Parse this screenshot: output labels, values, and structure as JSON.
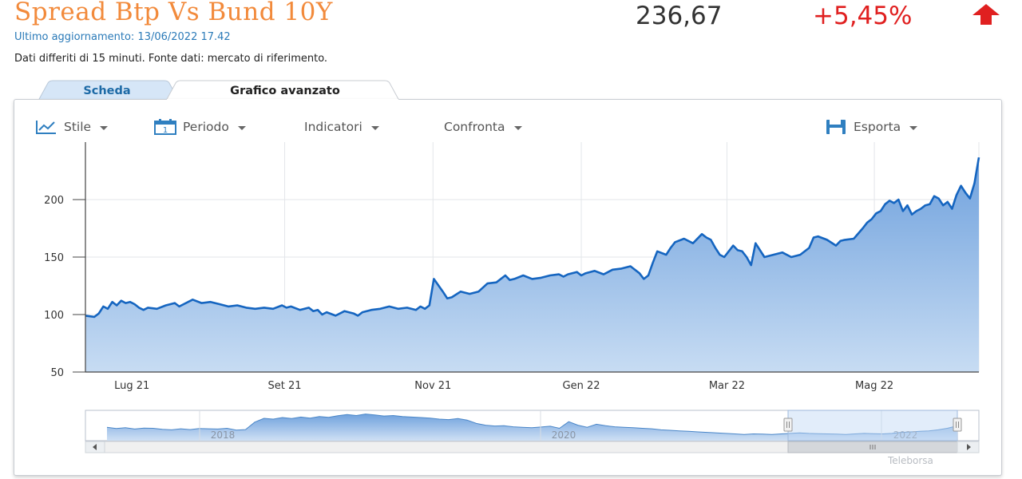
{
  "header": {
    "title": "Spread Btp Vs Bund 10Y",
    "value": "236,67",
    "change": "+5,45%",
    "updated_label": "Ultimo aggiornamento:",
    "updated_value": "13/06/2022 17.42",
    "delay_note": "Dati differiti di 15 minuti.  Fonte dati: mercato di riferimento.",
    "up_color": "#e02020",
    "title_color": "#f28a3b"
  },
  "tabs": [
    {
      "label": "Scheda",
      "active": false
    },
    {
      "label": "Grafico avanzato",
      "active": true
    }
  ],
  "toolbar": {
    "style_label": "Stile",
    "period_label": "Periodo",
    "indicators_label": "Indicatori",
    "compare_label": "Confronta",
    "export_label": "Esporta",
    "period_icon_day": "1"
  },
  "brand": "Teleborsa",
  "chart_data": {
    "type": "area",
    "color": "#1565c0",
    "fill_color": "#7aa9e0",
    "ylim": [
      50,
      250
    ],
    "yticks": [
      50,
      100,
      150,
      200
    ],
    "xlim": [
      0,
      1
    ],
    "xticks": [
      {
        "pos": 0.052,
        "label": "Lug 21"
      },
      {
        "pos": 0.223,
        "label": "Set 21"
      },
      {
        "pos": 0.389,
        "label": "Nov 21"
      },
      {
        "pos": 0.555,
        "label": "Gen 22"
      },
      {
        "pos": 0.718,
        "label": "Mar 22"
      },
      {
        "pos": 0.883,
        "label": "Mag 22"
      }
    ],
    "vlines": [
      0.223,
      0.389,
      0.555,
      0.718,
      0.883
    ],
    "grid": true,
    "series": [
      {
        "x": [
          0,
          0.01,
          0.015,
          0.02,
          0.025,
          0.03,
          0.035,
          0.04,
          0.045,
          0.05,
          0.055,
          0.06,
          0.065,
          0.07,
          0.08,
          0.09,
          0.1,
          0.105,
          0.11,
          0.12,
          0.13,
          0.14,
          0.15,
          0.16,
          0.17,
          0.18,
          0.19,
          0.2,
          0.21,
          0.22,
          0.225,
          0.23,
          0.24,
          0.25,
          0.255,
          0.26,
          0.265,
          0.27,
          0.28,
          0.29,
          0.3,
          0.305,
          0.31,
          0.32,
          0.33,
          0.34,
          0.35,
          0.36,
          0.37,
          0.375,
          0.38,
          0.385,
          0.39,
          0.4,
          0.405,
          0.41,
          0.42,
          0.43,
          0.44,
          0.45,
          0.46,
          0.47,
          0.475,
          0.48,
          0.49,
          0.5,
          0.51,
          0.52,
          0.53,
          0.535,
          0.54,
          0.55,
          0.555,
          0.56,
          0.57,
          0.58,
          0.59,
          0.6,
          0.61,
          0.62,
          0.625,
          0.63,
          0.635,
          0.64,
          0.65,
          0.655,
          0.66,
          0.67,
          0.68,
          0.69,
          0.695,
          0.7,
          0.705,
          0.71,
          0.715,
          0.72,
          0.725,
          0.73,
          0.735,
          0.74,
          0.745,
          0.75,
          0.76,
          0.77,
          0.78,
          0.79,
          0.8,
          0.81,
          0.815,
          0.82,
          0.83,
          0.84,
          0.845,
          0.85,
          0.86,
          0.87,
          0.875,
          0.88,
          0.885,
          0.89,
          0.895,
          0.9,
          0.905,
          0.91,
          0.915,
          0.92,
          0.925,
          0.93,
          0.935,
          0.94,
          0.945,
          0.95,
          0.955,
          0.96,
          0.965,
          0.97,
          0.975,
          0.98,
          0.985,
          0.99,
          0.995,
          1.0
        ],
        "y": [
          99,
          98,
          101,
          107,
          105,
          111,
          108,
          112,
          110,
          111,
          109,
          106,
          104,
          106,
          105,
          108,
          110,
          107,
          109,
          113,
          110,
          111,
          109,
          107,
          108,
          106,
          105,
          106,
          105,
          108,
          106,
          107,
          104,
          106,
          103,
          104,
          100,
          102,
          99,
          103,
          101,
          99,
          102,
          104,
          105,
          107,
          105,
          106,
          104,
          107,
          105,
          108,
          131,
          120,
          114,
          115,
          120,
          118,
          120,
          127,
          128,
          134,
          130,
          131,
          134,
          131,
          132,
          134,
          135,
          133,
          135,
          137,
          134,
          136,
          138,
          135,
          139,
          140,
          142,
          136,
          131,
          134,
          145,
          155,
          152,
          158,
          163,
          166,
          162,
          170,
          167,
          165,
          158,
          152,
          150,
          155,
          160,
          156,
          155,
          150,
          143,
          162,
          150,
          152,
          154,
          150,
          152,
          158,
          167,
          168,
          165,
          160,
          164,
          165,
          166,
          175,
          180,
          183,
          188,
          190,
          196,
          199,
          197,
          200,
          190,
          195,
          187,
          190,
          192,
          195,
          196,
          203,
          201,
          195,
          198,
          192,
          204,
          212,
          206,
          201,
          214,
          236.67
        ]
      }
    ],
    "navigator": {
      "tick_labels": [
        "2018",
        "2020",
        "2022"
      ],
      "profile": [
        0.4,
        0.35,
        0.38,
        0.33,
        0.37,
        0.36,
        0.32,
        0.3,
        0.34,
        0.31,
        0.35,
        0.34,
        0.33,
        0.36,
        0.29,
        0.31,
        0.6,
        0.75,
        0.72,
        0.78,
        0.74,
        0.8,
        0.76,
        0.82,
        0.79,
        0.85,
        0.9,
        0.86,
        0.92,
        0.88,
        0.84,
        0.86,
        0.82,
        0.8,
        0.78,
        0.76,
        0.72,
        0.7,
        0.74,
        0.68,
        0.55,
        0.48,
        0.45,
        0.46,
        0.42,
        0.4,
        0.38,
        0.41,
        0.44,
        0.36,
        0.62,
        0.48,
        0.4,
        0.52,
        0.46,
        0.42,
        0.4,
        0.38,
        0.36,
        0.34,
        0.3,
        0.28,
        0.26,
        0.24,
        0.22,
        0.2,
        0.18,
        0.16,
        0.14,
        0.12,
        0.14,
        0.13,
        0.12,
        0.14,
        0.16,
        0.18,
        0.16,
        0.15,
        0.14,
        0.13,
        0.12,
        0.14,
        0.16,
        0.15,
        0.14,
        0.16,
        0.2,
        0.22,
        0.24,
        0.26,
        0.3,
        0.36,
        0.45
      ]
    }
  }
}
